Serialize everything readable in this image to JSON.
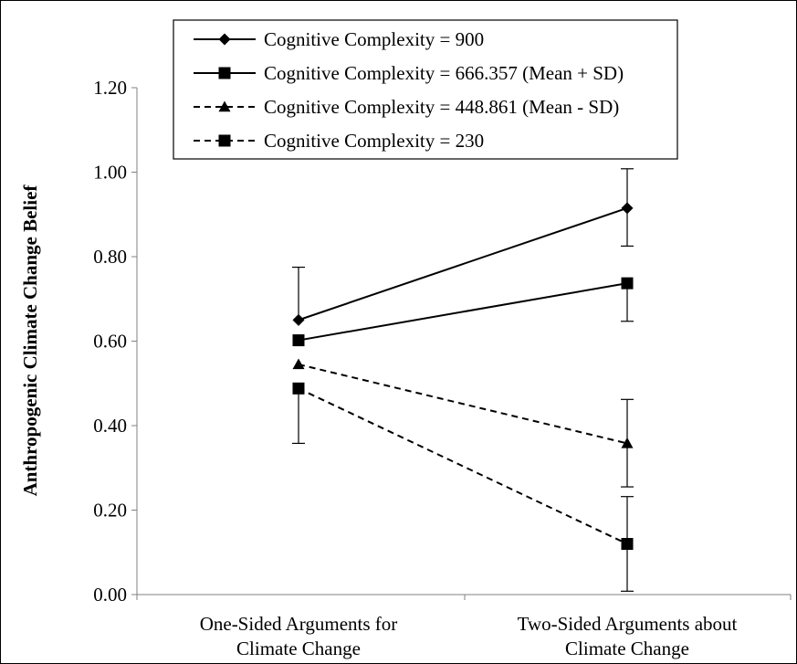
{
  "chart_data": {
    "type": "line",
    "title": "",
    "xlabel": "",
    "ylabel": "Anthropogenic Climate Change Belief",
    "categories": [
      [
        "One-Sided Arguments for",
        "Climate Change"
      ],
      [
        "Two-Sided Arguments about",
        "Climate Change"
      ]
    ],
    "ylim": [
      0,
      1.2
    ],
    "yticks": [
      "0.00",
      "0.20",
      "0.40",
      "0.60",
      "0.80",
      "1.00",
      "1.20"
    ],
    "grid": false,
    "legend_position": "top",
    "series": [
      {
        "name": "Cognitive Complexity = 900",
        "values": [
          0.65,
          0.915
        ],
        "error_high": [
          0.775,
          1.008
        ],
        "error_low": [
          null,
          0.825
        ],
        "line_style": "solid",
        "marker": "diamond"
      },
      {
        "name": "Cognitive Complexity = 666.357 (Mean + SD)",
        "values": [
          0.602,
          0.737
        ],
        "error_high": [
          null,
          null
        ],
        "error_low": [
          null,
          0.647
        ],
        "line_style": "solid",
        "marker": "square"
      },
      {
        "name": "Cognitive Complexity = 448.861 (Mean - SD)",
        "values": [
          0.545,
          0.358
        ],
        "error_high": [
          null,
          0.462
        ],
        "error_low": [
          null,
          0.255
        ],
        "line_style": "dashed",
        "marker": "triangle"
      },
      {
        "name": "Cognitive Complexity = 230",
        "values": [
          0.488,
          0.12
        ],
        "error_high": [
          null,
          0.232
        ],
        "error_low": [
          0.358,
          0.008
        ],
        "line_style": "dashed",
        "marker": "square"
      }
    ]
  }
}
